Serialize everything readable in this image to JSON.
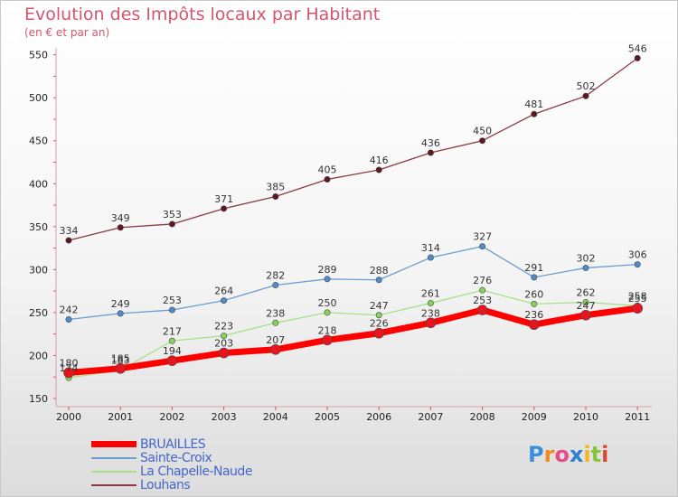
{
  "header": {
    "title": "Evolution des Impôts locaux par Habitant",
    "subtitle": "(en € et par an)"
  },
  "colors": {
    "title": "#d2566c",
    "legend_text": "#4466cc",
    "bruailles": "#ff0000",
    "sainte_croix": "#5b92c6",
    "la_chapelle_naude": "#9fe07a",
    "louhans": "#7a2e38"
  },
  "chart_data": {
    "type": "line",
    "x": [
      "2000",
      "2001",
      "2002",
      "2003",
      "2004",
      "2005",
      "2006",
      "2007",
      "2008",
      "2009",
      "2010",
      "2011"
    ],
    "ylim": [
      150,
      550
    ],
    "yticks": [
      150,
      200,
      250,
      300,
      350,
      400,
      450,
      500,
      550
    ],
    "grid": false,
    "legend": "bottom-left",
    "series": [
      {
        "name": "BRUAILLES",
        "color": "#ff0000",
        "point_color": "#e8141e",
        "width": 7,
        "r": 5.5,
        "values": [
          180,
          185,
          194,
          203,
          207,
          218,
          226,
          238,
          253,
          236,
          247,
          255
        ]
      },
      {
        "name": "Sainte-Croix",
        "color": "#6a9dd0",
        "point_color": "#4f8ccc",
        "width": 1.3,
        "r": 3.2,
        "values": [
          242,
          249,
          253,
          264,
          282,
          289,
          288,
          314,
          327,
          291,
          302,
          306
        ]
      },
      {
        "name": "La Chapelle-Naude",
        "color": "#a8e08a",
        "point_color": "#86d35a",
        "width": 1.3,
        "r": 3.2,
        "values": [
          174,
          183,
          217,
          223,
          238,
          250,
          247,
          261,
          276,
          260,
          262,
          258
        ]
      },
      {
        "name": "Louhans",
        "color": "#8a3a44",
        "point_color": "#5e1820",
        "width": 1.3,
        "r": 3.2,
        "values": [
          334,
          349,
          353,
          371,
          385,
          405,
          416,
          436,
          450,
          481,
          502,
          546
        ]
      }
    ]
  },
  "branding": {
    "letters": [
      "P",
      "r",
      "o",
      "x",
      "i",
      "t",
      "i"
    ]
  }
}
